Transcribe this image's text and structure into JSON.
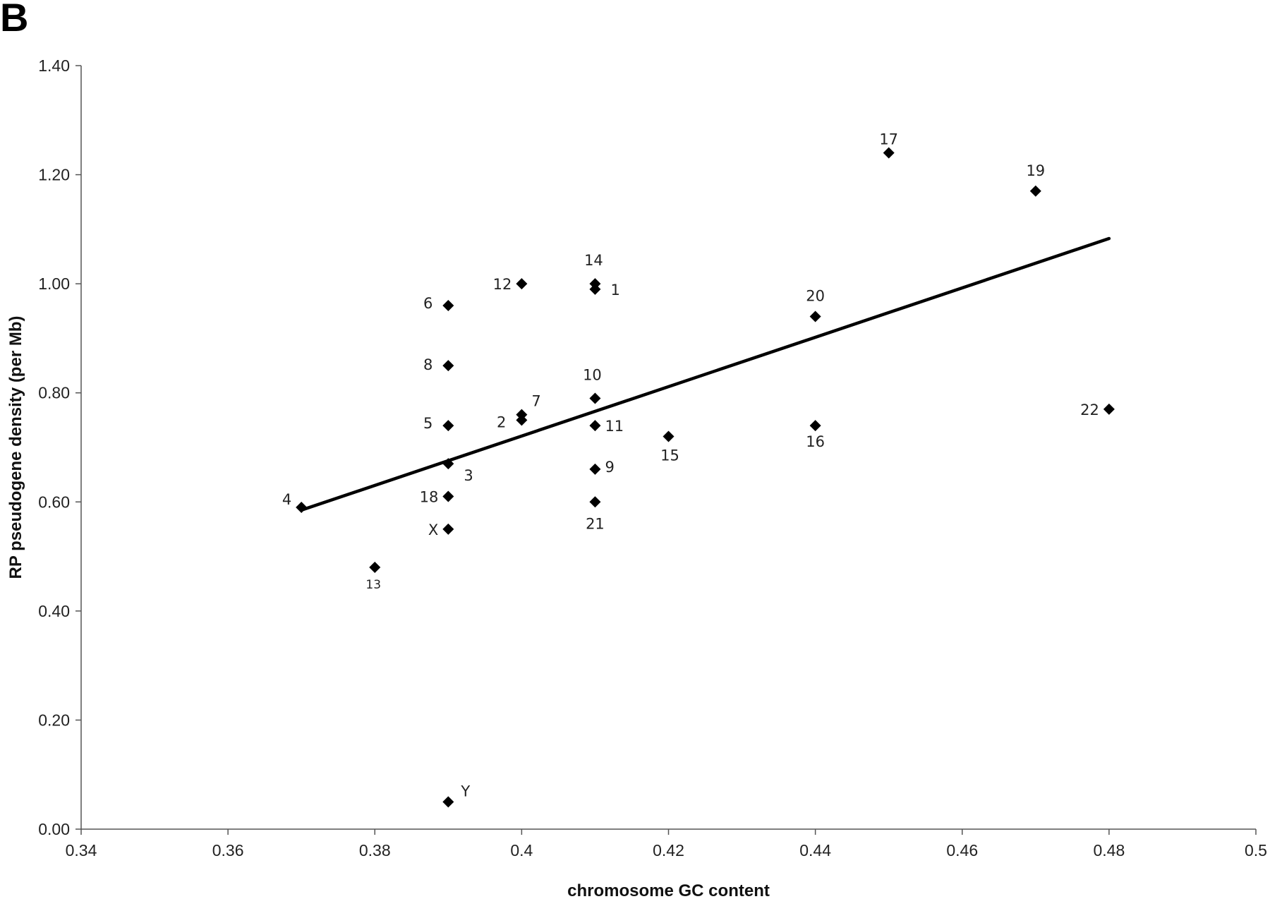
{
  "panel_letter": "B",
  "chart_data": {
    "type": "scatter",
    "xlabel": "chromosome GC content",
    "ylabel": "RP pseudogene density (per Mb)",
    "xlim": [
      0.34,
      0.5
    ],
    "ylim": [
      0,
      1.4
    ],
    "x_ticks": [
      "0.34",
      "0.36",
      "0.38",
      "0.4",
      "0.42",
      "0.44",
      "0.46",
      "0.48",
      "0.5"
    ],
    "y_ticks": [
      "0.00",
      "0.20",
      "0.40",
      "0.60",
      "0.80",
      "1.00",
      "1.20",
      "1.40"
    ],
    "grid": false,
    "marker": "diamond",
    "points": [
      {
        "label": "1",
        "x": 0.41,
        "y": 0.99
      },
      {
        "label": "2",
        "x": 0.4,
        "y": 0.75
      },
      {
        "label": "3",
        "x": 0.39,
        "y": 0.67
      },
      {
        "label": "4",
        "x": 0.37,
        "y": 0.59
      },
      {
        "label": "5",
        "x": 0.39,
        "y": 0.74
      },
      {
        "label": "6",
        "x": 0.39,
        "y": 0.96
      },
      {
        "label": "7",
        "x": 0.4,
        "y": 0.76
      },
      {
        "label": "8",
        "x": 0.39,
        "y": 0.85
      },
      {
        "label": "9",
        "x": 0.41,
        "y": 0.66
      },
      {
        "label": "10",
        "x": 0.41,
        "y": 0.79
      },
      {
        "label": "11",
        "x": 0.41,
        "y": 0.74
      },
      {
        "label": "12",
        "x": 0.4,
        "y": 1.0
      },
      {
        "label": "13",
        "x": 0.38,
        "y": 0.48
      },
      {
        "label": "14",
        "x": 0.41,
        "y": 1.0
      },
      {
        "label": "15",
        "x": 0.42,
        "y": 0.72
      },
      {
        "label": "16",
        "x": 0.44,
        "y": 0.74
      },
      {
        "label": "17",
        "x": 0.45,
        "y": 1.24
      },
      {
        "label": "18",
        "x": 0.39,
        "y": 0.61
      },
      {
        "label": "19",
        "x": 0.47,
        "y": 1.17
      },
      {
        "label": "20",
        "x": 0.44,
        "y": 0.94
      },
      {
        "label": "21",
        "x": 0.41,
        "y": 0.6
      },
      {
        "label": "22",
        "x": 0.48,
        "y": 0.77
      },
      {
        "label": "X",
        "x": 0.39,
        "y": 0.55
      },
      {
        "label": "Y",
        "x": 0.39,
        "y": 0.05
      }
    ],
    "trendline": {
      "x": [
        0.37,
        0.48
      ],
      "y": [
        0.585,
        1.083
      ]
    }
  }
}
